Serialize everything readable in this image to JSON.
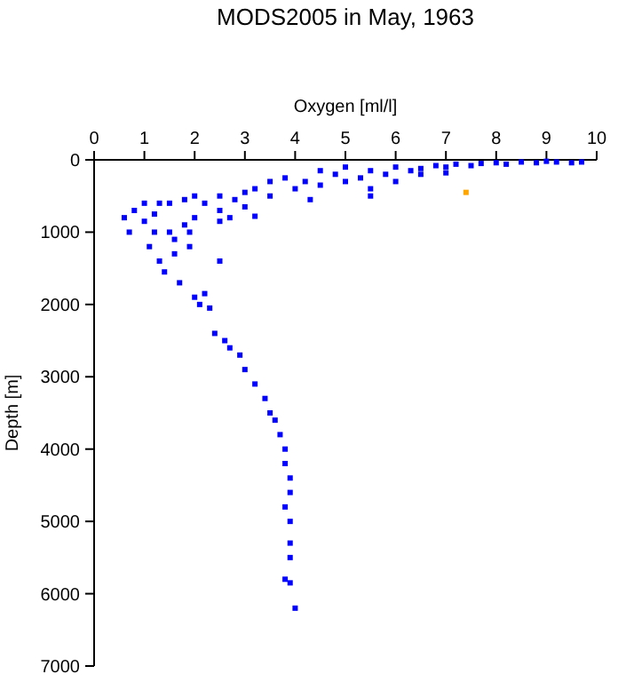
{
  "chart_data": {
    "type": "scatter",
    "title": "MODS2005 in May, 1963",
    "xlabel": "Oxygen [ml/l]",
    "ylabel": "Depth [m]",
    "xlim": [
      0,
      10
    ],
    "xticks": [
      0,
      1,
      2,
      3,
      4,
      5,
      6,
      7,
      8,
      9,
      10
    ],
    "ylim": [
      7000,
      0
    ],
    "yticks": [
      0,
      1000,
      2000,
      3000,
      4000,
      5000,
      6000,
      7000
    ],
    "marker": "square",
    "grid": false,
    "series": [
      {
        "color": "#0000ff",
        "x": [
          9.7,
          9.5,
          9.2,
          9.0,
          8.8,
          8.5,
          8.2,
          8.0,
          7.7,
          7.5,
          7.2,
          7.0,
          6.8,
          6.5,
          6.3,
          6.0,
          5.8,
          5.5,
          5.3,
          5.0,
          5.0,
          4.8,
          4.5,
          4.5,
          4.2,
          4.0,
          3.8,
          3.5,
          3.5,
          3.2,
          3.0,
          3.0,
          2.8,
          2.5,
          2.5,
          2.2,
          2.0,
          2.0,
          1.8,
          1.8,
          1.5,
          1.5,
          1.3,
          1.2,
          1.0,
          1.0,
          0.8,
          0.6,
          0.7,
          1.2,
          1.1,
          1.3,
          1.4,
          1.6,
          1.9,
          1.7,
          2.0,
          2.1,
          2.3,
          2.4,
          2.6,
          2.7,
          2.9,
          3.0,
          3.2,
          3.4,
          3.5,
          3.6,
          3.7,
          3.8,
          3.8,
          3.9,
          3.9,
          3.8,
          3.9,
          3.9,
          3.9,
          3.8,
          3.9,
          4.0,
          5.5,
          6.0,
          6.5,
          7.0,
          2.5,
          2.7,
          3.2,
          4.3,
          5.5,
          1.6,
          1.9,
          2.2,
          2.5
        ],
        "values": [
          30,
          40,
          30,
          20,
          40,
          30,
          60,
          40,
          50,
          80,
          60,
          100,
          80,
          120,
          150,
          100,
          200,
          150,
          250,
          100,
          300,
          200,
          350,
          150,
          300,
          400,
          250,
          300,
          500,
          400,
          450,
          650,
          550,
          500,
          700,
          600,
          500,
          800,
          550,
          900,
          600,
          1000,
          600,
          750,
          600,
          850,
          700,
          800,
          1000,
          1000,
          1200,
          1400,
          1550,
          1300,
          1200,
          1700,
          1900,
          2000,
          2050,
          2400,
          2500,
          2600,
          2700,
          2900,
          3100,
          3300,
          3500,
          3600,
          3800,
          4000,
          4200,
          4400,
          4600,
          4800,
          5000,
          5300,
          5500,
          5800,
          5850,
          6200,
          400,
          300,
          200,
          180,
          850,
          800,
          780,
          550,
          500,
          1100,
          1000,
          1850,
          1400
        ]
      },
      {
        "color": "#ffa500",
        "x": [
          7.4
        ],
        "values": [
          450
        ]
      }
    ]
  }
}
